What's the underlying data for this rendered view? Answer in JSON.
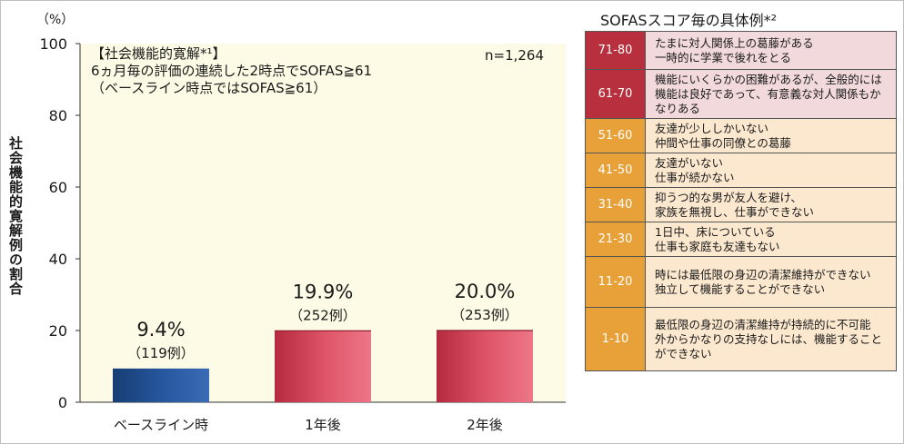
{
  "y_unit": "（%）",
  "y_axis_label": "社会機能的寛解例の割合",
  "note": {
    "line1": "【社会機能的寛解*¹】",
    "line2": "6ヵ月毎の評価の連続した2時点でSOFAS≧61",
    "line3": "（ベースライン時点ではSOFAS≧61）"
  },
  "sample_size": "n=1,264",
  "chart_data": {
    "type": "bar",
    "categories": [
      "ベースライン時",
      "1年後",
      "2年後"
    ],
    "values": [
      9.4,
      19.9,
      20.0
    ],
    "value_labels": [
      "9.4%",
      "19.9%",
      "20.0%"
    ],
    "count_labels": [
      "（119例）",
      "（252例）",
      "（253例）"
    ],
    "ylim": [
      0,
      100
    ],
    "yticks": [
      0,
      20,
      40,
      60,
      80,
      100
    ],
    "grid": false,
    "bar_colors": [
      "#1f4e8a",
      "#c8384c",
      "#c8384c"
    ],
    "plot_background": "#fdfbe5"
  },
  "sofas_table": {
    "title": "SOFASスコア毎の具体例*²",
    "rows": [
      {
        "range": "71-80",
        "desc": "たまに対人関係上の葛藤がある\n一時的に学業で後れをとる",
        "range_color": "#b8303e",
        "bg": "#f2d9dc"
      },
      {
        "range": "61-70",
        "desc": "機能にいくらかの困難があるが、全般的には機能は良好であって、有意義な対人関係もかなりある",
        "range_color": "#b8303e",
        "bg": "#f2d9dc"
      },
      {
        "range": "51-60",
        "desc": "友達が少ししかいない\n仲間や仕事の同僚との葛藤",
        "range_color": "#e8a039",
        "bg": "#fbe8cf"
      },
      {
        "range": "41-50",
        "desc": "友達がいない\n仕事が続かない",
        "range_color": "#e8a039",
        "bg": "#fbe8cf"
      },
      {
        "range": "31-40",
        "desc": "抑うつ的な男が友人を避け、\n家族を無視し、仕事ができない",
        "range_color": "#e8a039",
        "bg": "#fbe8cf"
      },
      {
        "range": "21-30",
        "desc": "1日中、床についている\n仕事も家庭も友達もない",
        "range_color": "#e8a039",
        "bg": "#fbe8cf"
      },
      {
        "range": "11-20",
        "desc": "時には最低限の身辺の清潔維持ができない\n独立して機能することができない",
        "range_color": "#e8a039",
        "bg": "#fbe8cf"
      },
      {
        "range": "1-10",
        "desc": "最低限の身辺の清潔維持が持続的に不可能\n外からかなりの支持なしには、機能することができない",
        "range_color": "#e8a039",
        "bg": "#fbe8cf"
      }
    ]
  }
}
